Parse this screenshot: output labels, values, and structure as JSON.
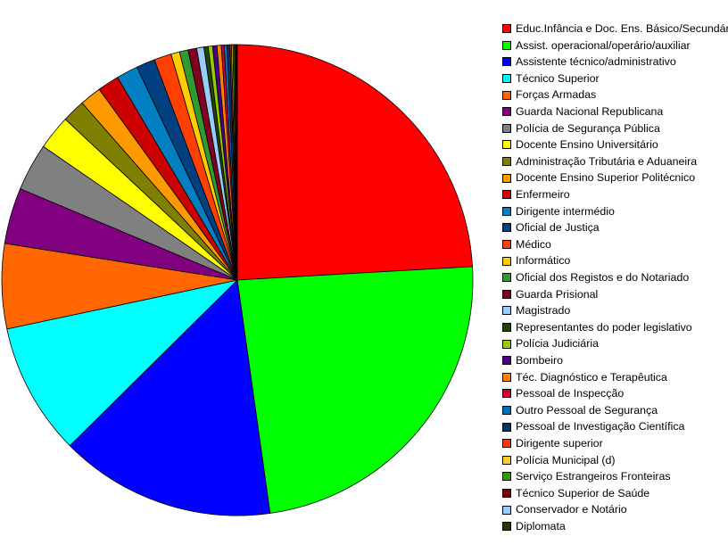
{
  "chart_data": {
    "type": "pie",
    "title": "",
    "legend": "right",
    "slices": [
      {
        "label": "Educ.Infância e Doc. Ens. Básico/Secundário",
        "value": 24.4,
        "color": "#ff0000"
      },
      {
        "label": "Assist. operacional/operário/auxiliar",
        "value": 24.0,
        "color": "#00ff00"
      },
      {
        "label": "Assistente técnico/administrativo",
        "value": 15.0,
        "color": "#0000ff"
      },
      {
        "label": "Técnico Superior",
        "value": 9.2,
        "color": "#00ffff"
      },
      {
        "label": "Forças Armadas",
        "value": 5.9,
        "color": "#ff6600"
      },
      {
        "label": "Guarda Nacional Republicana",
        "value": 3.9,
        "color": "#800080"
      },
      {
        "label": "Polícia de Segurança Pública",
        "value": 3.3,
        "color": "#808080"
      },
      {
        "label": "Docente Ensino Universitário",
        "value": 2.4,
        "color": "#ffff00"
      },
      {
        "label": "Administração Tributária e Aduaneira",
        "value": 1.6,
        "color": "#808000"
      },
      {
        "label": "Docente Ensino Superior Politécnico",
        "value": 1.5,
        "color": "#ff9900"
      },
      {
        "label": "Enfermeiro",
        "value": 1.5,
        "color": "#cc0000"
      },
      {
        "label": "Dirigente intermédio",
        "value": 1.5,
        "color": "#0080c0"
      },
      {
        "label": "Oficial de Justiça",
        "value": 1.3,
        "color": "#004080"
      },
      {
        "label": "Médico",
        "value": 1.2,
        "color": "#ff4000"
      },
      {
        "label": "Informático",
        "value": 0.6,
        "color": "#ffcc00"
      },
      {
        "label": "Oficial dos Registos e do Notariado",
        "value": 0.6,
        "color": "#339933"
      },
      {
        "label": "Guarda Prisional",
        "value": 0.6,
        "color": "#800020"
      },
      {
        "label": "Magistrado",
        "value": 0.5,
        "color": "#99ccff"
      },
      {
        "label": "Representantes do poder legislativo",
        "value": 0.3,
        "color": "#224400"
      },
      {
        "label": "Polícia Judiciária",
        "value": 0.3,
        "color": "#99cc00"
      },
      {
        "label": "Bombeiro",
        "value": 0.3,
        "color": "#4b0080"
      },
      {
        "label": "Téc. Diagnóstico e Terapêutica",
        "value": 0.3,
        "color": "#ff8000"
      },
      {
        "label": "Pessoal de Inspecção",
        "value": 0.2,
        "color": "#cc0033"
      },
      {
        "label": "Outro Pessoal de Segurança",
        "value": 0.2,
        "color": "#0070c0"
      },
      {
        "label": "Pessoal de Investigação Científica",
        "value": 0.2,
        "color": "#003366"
      },
      {
        "label": "Dirigente superior",
        "value": 0.1,
        "color": "#ff3300"
      },
      {
        "label": "Polícia Municipal (d)",
        "value": 0.1,
        "color": "#ffcc33"
      },
      {
        "label": "Serviço Estrangeiros Fronteiras",
        "value": 0.1,
        "color": "#339900"
      },
      {
        "label": "Técnico Superior de Saúde",
        "value": 0.1,
        "color": "#800000"
      },
      {
        "label": "Conservador e Notário",
        "value": 0.05,
        "color": "#99ccff"
      },
      {
        "label": "Diplomata",
        "value": 0.05,
        "color": "#333300"
      }
    ]
  }
}
